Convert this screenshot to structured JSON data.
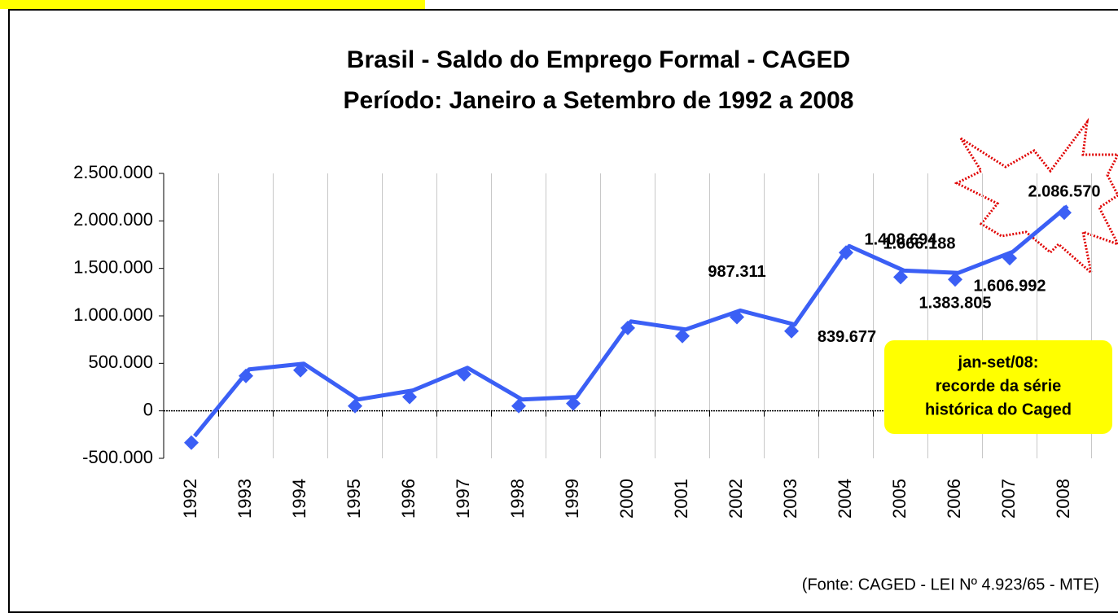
{
  "chart_data": {
    "type": "line",
    "title": "Brasil - Saldo do Emprego Formal - CAGED",
    "subtitle": "Período: Janeiro a Setembro de 1992 a 2008",
    "categories": [
      "1992",
      "1993",
      "1994",
      "1995",
      "1996",
      "1997",
      "1998",
      "1999",
      "2000",
      "2001",
      "2002",
      "2003",
      "2004",
      "2005",
      "2006",
      "2007",
      "2008"
    ],
    "series": [
      {
        "name": "Saldo",
        "color": "#3b5ff5",
        "values": [
          -335000,
          368000,
          428000,
          51000,
          146000,
          385000,
          51000,
          77000,
          873000,
          788000,
          987311,
          839677,
          1666188,
          1408694,
          1383805,
          1606992,
          2086570
        ],
        "value_labels": [
          null,
          null,
          null,
          null,
          null,
          null,
          null,
          null,
          null,
          null,
          "987.311",
          "839.677",
          "1.666.188",
          "1.408.694",
          "1.383.805",
          "1.606.992",
          "2.086.570"
        ]
      }
    ],
    "ylim": [
      -500000,
      2500000
    ],
    "yticks": [
      {
        "value": -500000,
        "label": "-500.000"
      },
      0,
      {
        "value": 500000,
        "label": "500.000"
      },
      {
        "value": 1000000,
        "label": "1.000.000"
      },
      {
        "value": 1500000,
        "label": "1.500.000"
      },
      {
        "value": 2000000,
        "label": "2.000.000"
      },
      {
        "value": 2500000,
        "label": "2.500.000"
      }
    ],
    "grid": true,
    "annotation": [
      "jan-set/08:",
      "recorde da série",
      "histórica do Caged"
    ],
    "source": "(Fonte: CAGED - LEI Nº 4.923/65 - MTE)"
  }
}
